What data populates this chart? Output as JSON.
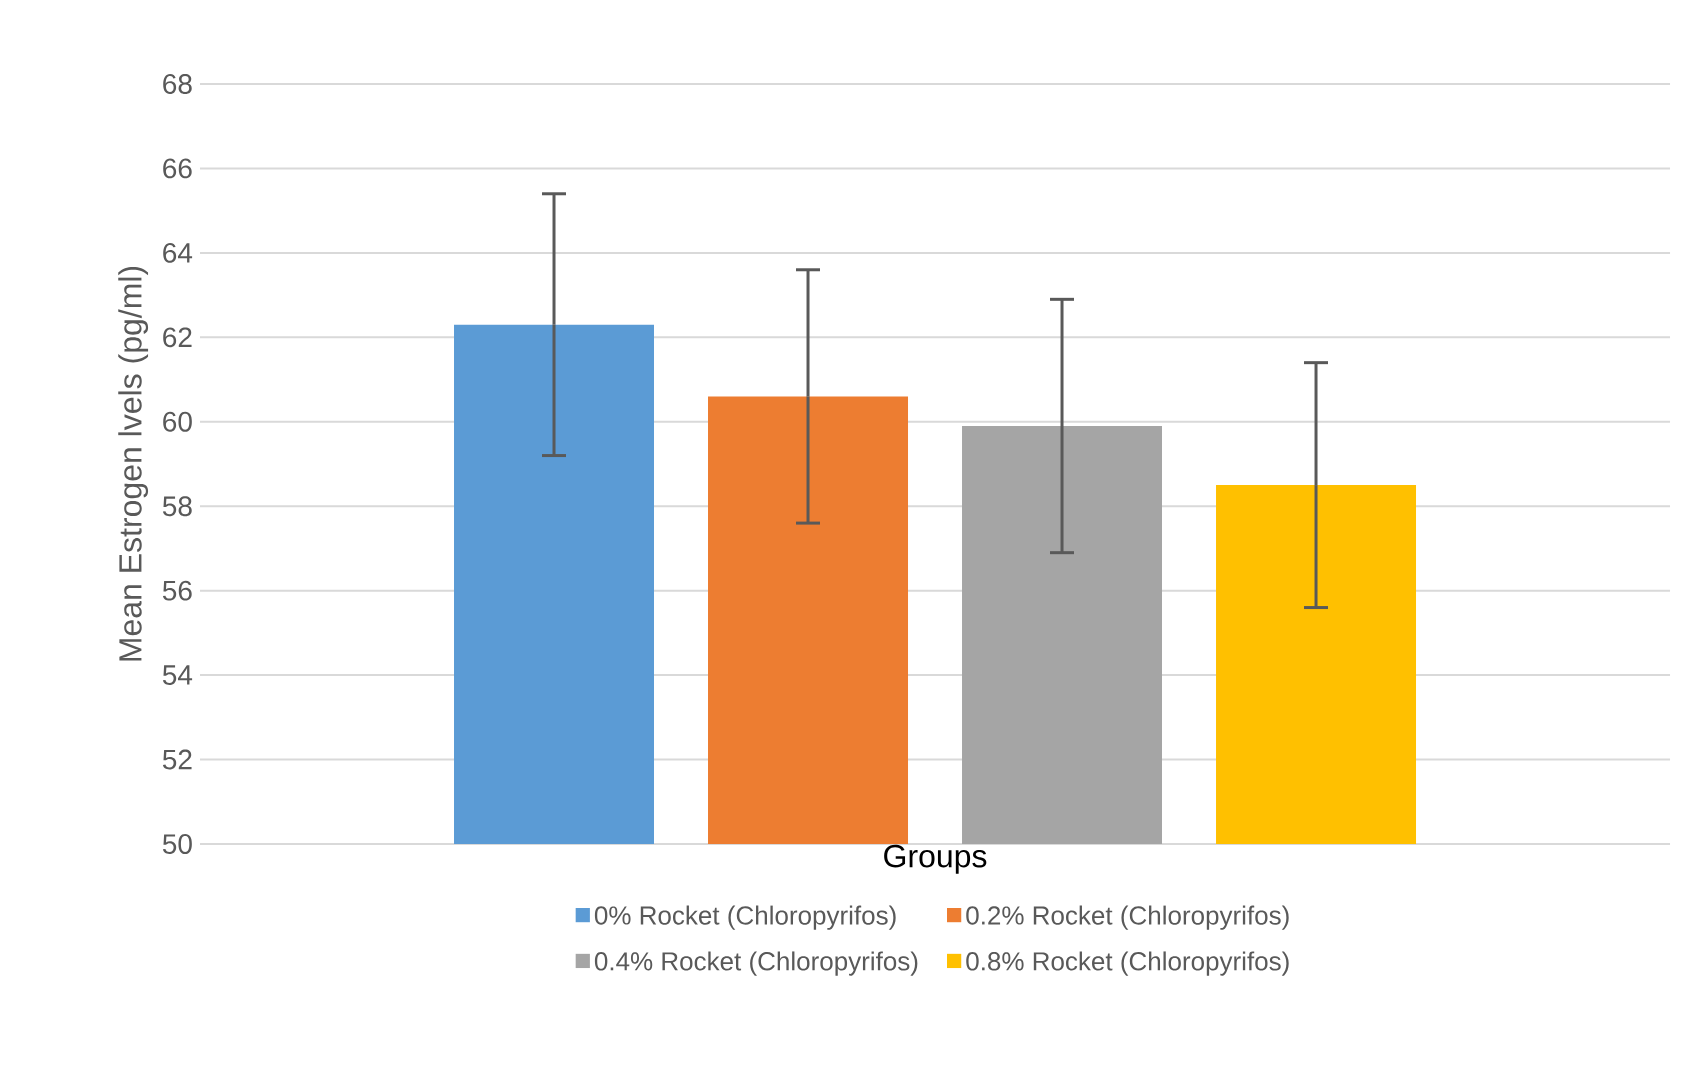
{
  "chart_data": {
    "type": "bar",
    "xlabel": "Groups",
    "ylabel": "Mean Estrogen lvels (pg/ml)",
    "categories": [
      null
    ],
    "series": [
      {
        "name": "0% Rocket (Chloropyrifos)",
        "color": "#5b9bd5",
        "values": [
          62.3
        ],
        "errors": [
          3.1
        ]
      },
      {
        "name": "0.2% Rocket (Chloropyrifos)",
        "color": "#ed7d31",
        "values": [
          60.6
        ],
        "errors": [
          3.0
        ]
      },
      {
        "name": "0.4% Rocket (Chloropyrifos)",
        "color": "#a5a5a5",
        "values": [
          59.9
        ],
        "errors": [
          3.0
        ]
      },
      {
        "name": "0.8% Rocket (Chloropyrifos)",
        "color": "#ffc000",
        "values": [
          58.5
        ],
        "errors": [
          2.9
        ]
      }
    ],
    "ylim": [
      50,
      68
    ],
    "yticks": [
      50,
      52,
      54,
      56,
      58,
      60,
      62,
      64,
      66,
      68
    ],
    "grid": "y",
    "legend": "bottom"
  }
}
